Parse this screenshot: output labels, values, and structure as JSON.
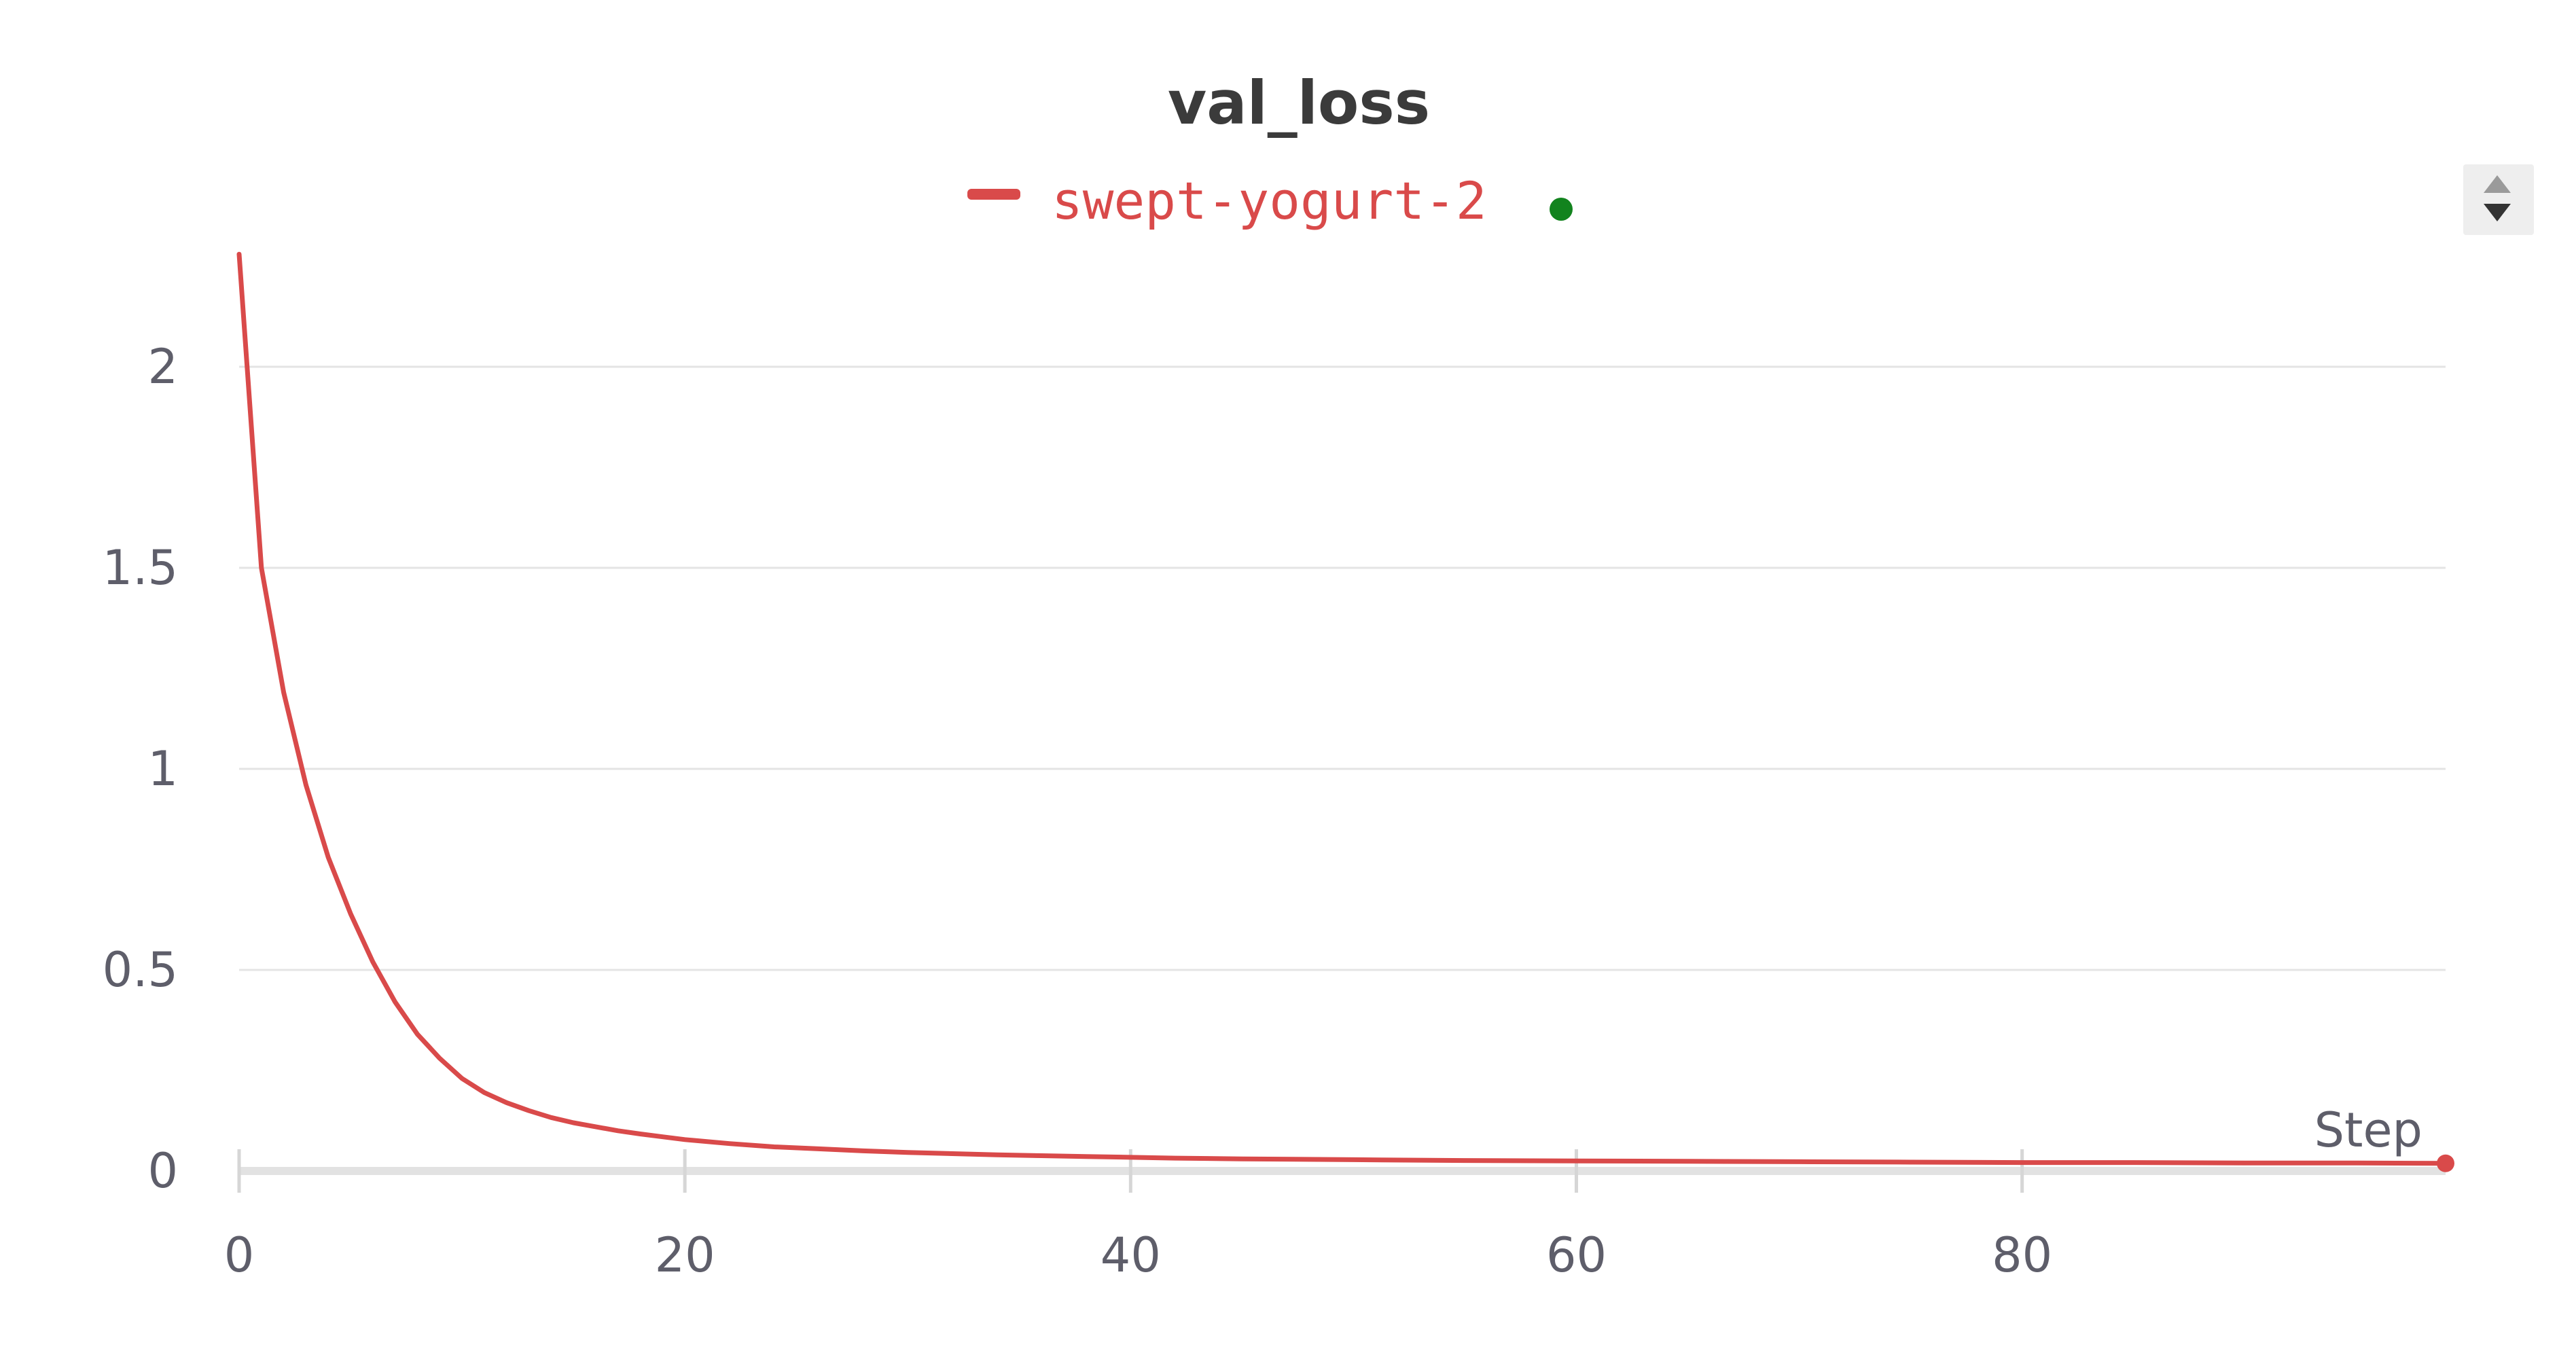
{
  "chart_data": {
    "type": "line",
    "title": "val_loss",
    "xlabel": "Step",
    "ylabel": "",
    "xlim": [
      0,
      99
    ],
    "ylim": [
      0,
      2.28
    ],
    "xticks": [
      "0",
      "20",
      "40",
      "60",
      "80"
    ],
    "yticks": [
      "0",
      "0.5",
      "1",
      "1.5",
      "2"
    ],
    "grid": true,
    "legend_position": "top-center",
    "series": [
      {
        "name": "swept-yogurt-2",
        "color": "#d94a4a",
        "status_color": "#12831e",
        "x": [
          0,
          1,
          2,
          3,
          4,
          5,
          6,
          7,
          8,
          9,
          10,
          11,
          12,
          13,
          14,
          15,
          16,
          17,
          18,
          19,
          20,
          22,
          24,
          26,
          28,
          30,
          32,
          34,
          36,
          38,
          40,
          42,
          45,
          50,
          55,
          60,
          65,
          70,
          75,
          80,
          85,
          90,
          95,
          99
        ],
        "y": [
          2.28,
          1.5,
          1.19,
          0.96,
          0.78,
          0.64,
          0.52,
          0.42,
          0.34,
          0.28,
          0.23,
          0.195,
          0.17,
          0.15,
          0.133,
          0.12,
          0.11,
          0.1,
          0.092,
          0.085,
          0.078,
          0.068,
          0.06,
          0.055,
          0.05,
          0.046,
          0.043,
          0.04,
          0.038,
          0.036,
          0.034,
          0.032,
          0.03,
          0.028,
          0.026,
          0.025,
          0.024,
          0.023,
          0.022,
          0.021,
          0.021,
          0.02,
          0.02,
          0.019
        ]
      }
    ]
  }
}
